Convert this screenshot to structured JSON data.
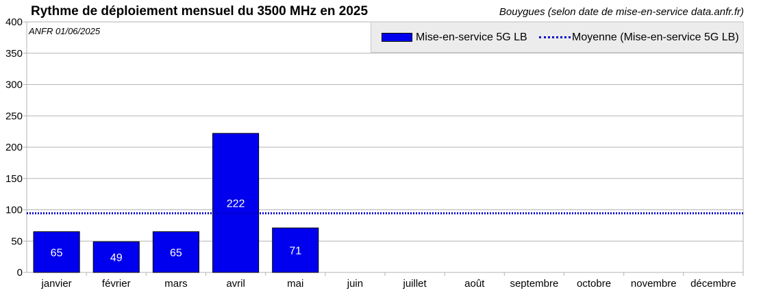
{
  "chart_data": {
    "type": "bar",
    "title": "Rythme de déploiement mensuel du 3500 MHz en 2025",
    "subtitle": "Bouygues (selon date de mise-en-service data.anfr.fr)",
    "source_note": "ANFR 01/06/2025",
    "categories": [
      "janvier",
      "février",
      "mars",
      "avril",
      "mai",
      "juin",
      "juillet",
      "août",
      "septembre",
      "octobre",
      "novembre",
      "décembre"
    ],
    "series": [
      {
        "name": "Mise-en-service 5G LB",
        "values": [
          65,
          49,
          65,
          222,
          71,
          null,
          null,
          null,
          null,
          null,
          null,
          null
        ],
        "color": "#0000ee"
      }
    ],
    "average": {
      "name": "Moyenne (Mise-en-service 5G LB)",
      "value": 94.4,
      "color": "#0000cc"
    },
    "y_ticks": [
      0,
      50,
      100,
      150,
      200,
      250,
      300,
      350,
      400
    ],
    "ylim": [
      0,
      400
    ],
    "grid": true,
    "legend_position": "top-right"
  }
}
